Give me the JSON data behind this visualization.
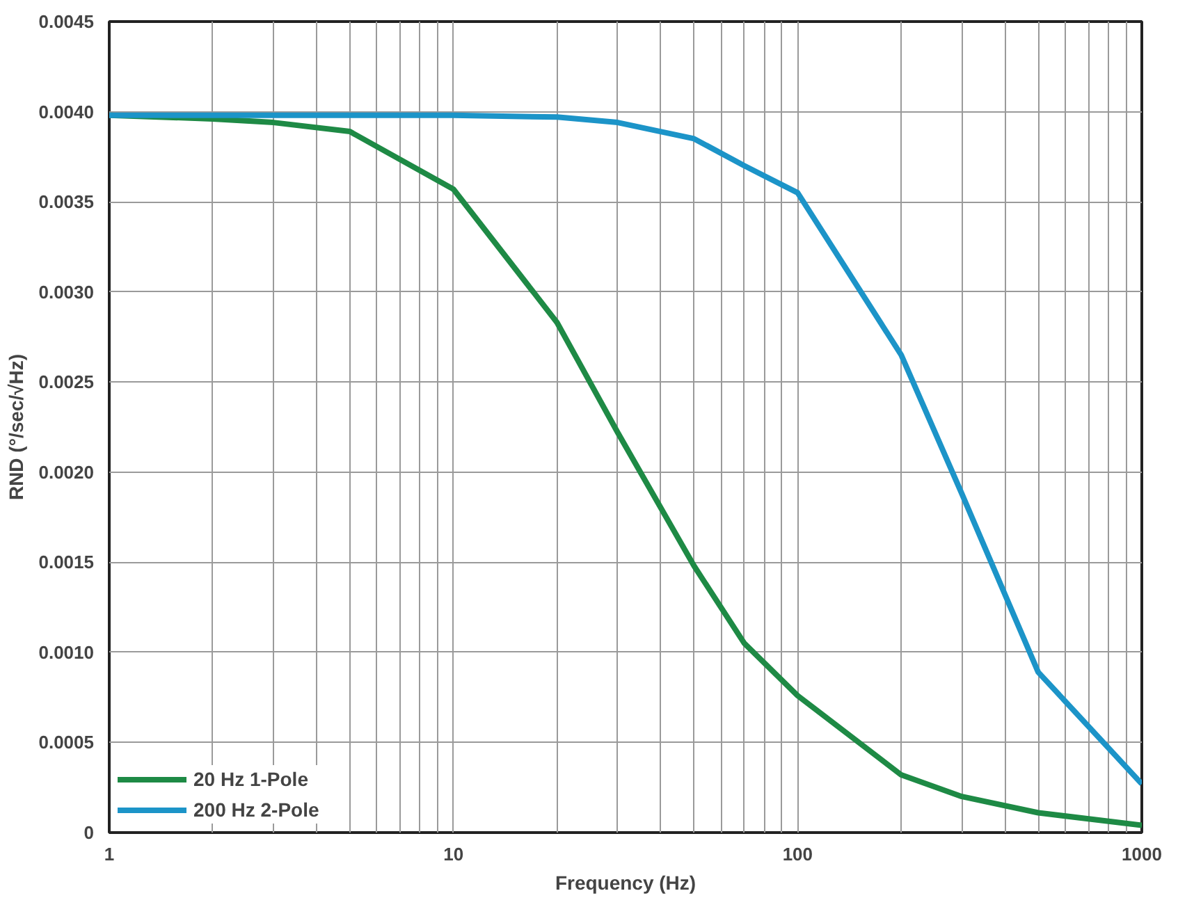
{
  "chart_data": {
    "type": "line",
    "xlabel": "Frequency (Hz)",
    "ylabel": "RND (°/sec/√Hz)",
    "log": "x",
    "grid": true,
    "legend": "bottom left",
    "line_style": "solid",
    "marker": "none",
    "xlim": [
      1,
      1000
    ],
    "xticks": [
      1,
      10,
      100,
      1000
    ],
    "ylim": [
      0,
      0.0045
    ],
    "yticks": [
      0,
      {
        "value": 0.0005,
        "label": "0.0005"
      },
      {
        "value": 0.001,
        "label": "0.0010"
      },
      {
        "value": 0.0015,
        "label": "0.0015"
      },
      {
        "value": 0.002,
        "label": "0.0020"
      },
      {
        "value": 0.0025,
        "label": "0.0025"
      },
      {
        "value": 0.003,
        "label": "0.0030"
      },
      {
        "value": 0.0035,
        "label": "0.0035"
      },
      {
        "value": 0.004,
        "label": "0.0040"
      },
      {
        "value": 0.0045,
        "label": "0.0045"
      }
    ],
    "x": [
      1,
      2,
      3,
      5,
      10,
      20,
      30,
      50,
      70,
      100,
      200,
      300,
      500,
      1000
    ],
    "series": [
      {
        "name": "20 Hz 1-Pole",
        "color": "#1e8a45",
        "values": [
          0.00398,
          0.00396,
          0.00394,
          0.00389,
          0.00357,
          0.00283,
          0.00222,
          0.00148,
          0.00105,
          0.00076,
          0.00032,
          0.0002,
          0.00011,
          4e-05
        ]
      },
      {
        "name": "200 Hz 2-Pole",
        "color": "#1c94c8",
        "values": [
          0.00398,
          0.00398,
          0.00398,
          0.00398,
          0.00398,
          0.00397,
          0.00394,
          0.00385,
          0.0037,
          0.00355,
          0.00265,
          0.00188,
          0.00089,
          0.00027
        ]
      }
    ]
  }
}
